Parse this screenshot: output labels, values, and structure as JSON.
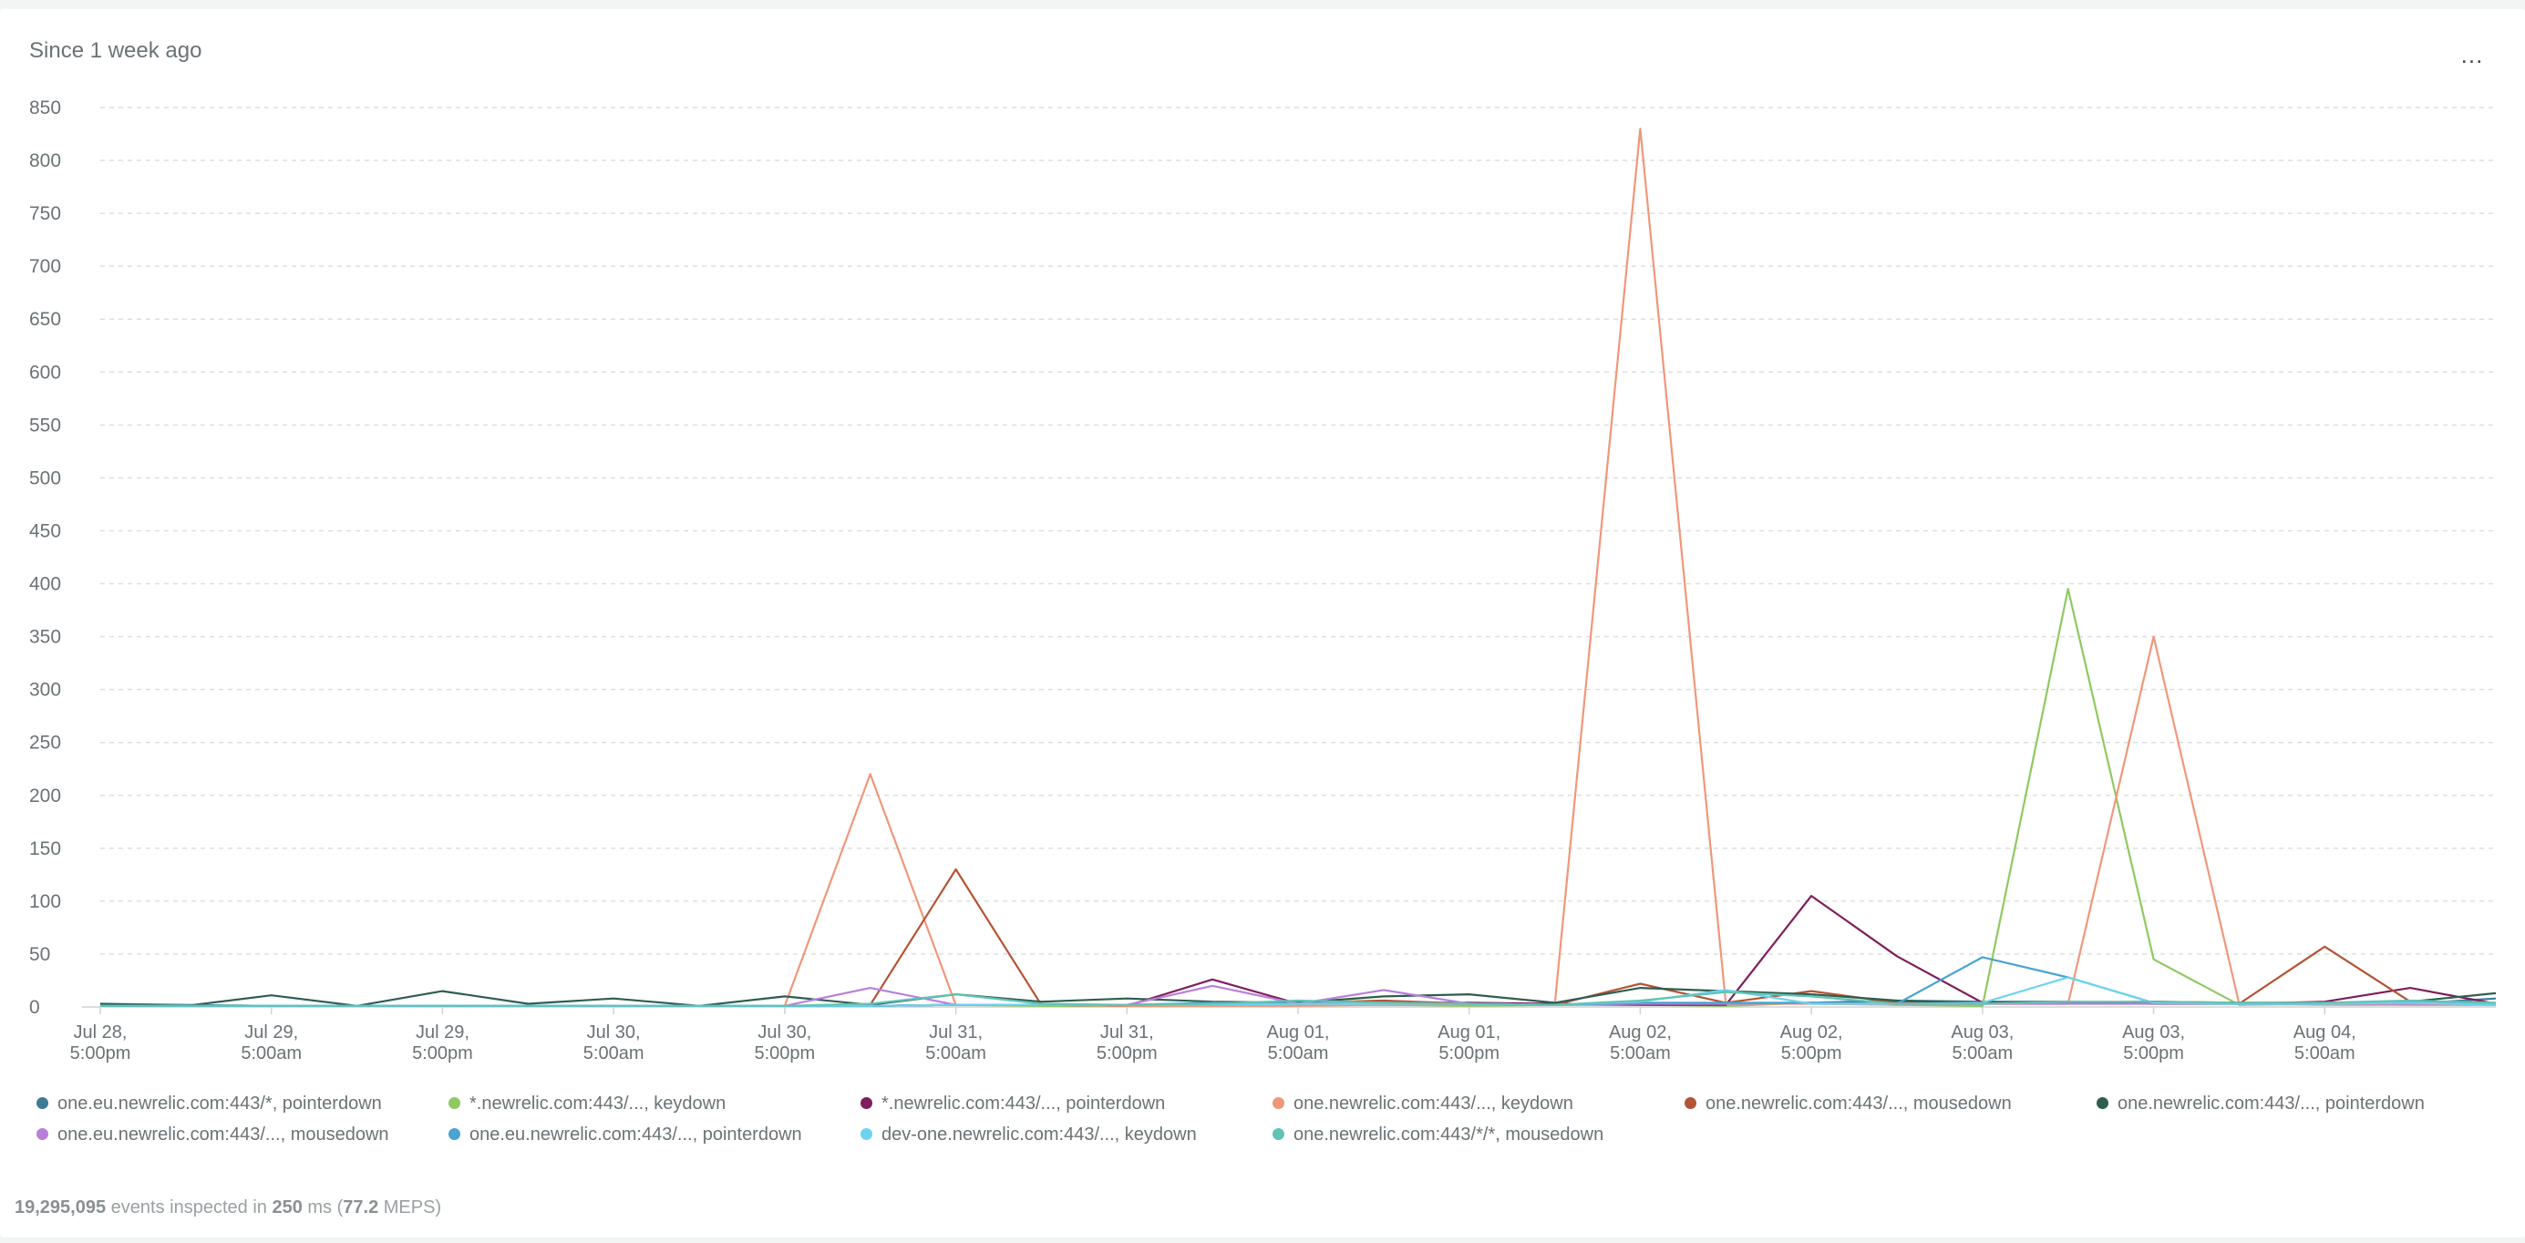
{
  "widget": {
    "title": "Since 1 week ago",
    "menu_label": "...",
    "footer": {
      "events": "19,295,095",
      "events_text": " events inspected in ",
      "ms": "250",
      "ms_text": " ms (",
      "meps": "77.2",
      "meps_text": " MEPS)"
    }
  },
  "chart_data": {
    "type": "line",
    "title": "",
    "xlabel": "",
    "ylabel": "",
    "ylim": [
      0,
      850
    ],
    "yticks": [
      0,
      50,
      100,
      150,
      200,
      250,
      300,
      350,
      400,
      450,
      500,
      550,
      600,
      650,
      700,
      750,
      800,
      850
    ],
    "grid": true,
    "legend_position": "bottom",
    "x": [
      0,
      2,
      4,
      6,
      8,
      10,
      12,
      14,
      16,
      18,
      20,
      22,
      24,
      26,
      28,
      30,
      32,
      34,
      36,
      38,
      40,
      42,
      44,
      46,
      48,
      50,
      52,
      54,
      56
    ],
    "x_unit": "hours since Jul 28, 5:00pm",
    "x_tick_labels": [
      [
        "Jul 28,",
        "5:00pm"
      ],
      [
        "Jul 29,",
        "5:00am"
      ],
      [
        "Jul 29,",
        "5:00pm"
      ],
      [
        "Jul 30,",
        "5:00am"
      ],
      [
        "Jul 30,",
        "5:00pm"
      ],
      [
        "Jul 31,",
        "5:00am"
      ],
      [
        "Jul 31,",
        "5:00pm"
      ],
      [
        "Aug 01,",
        "5:00am"
      ],
      [
        "Aug 01,",
        "5:00pm"
      ],
      [
        "Aug 02,",
        "5:00am"
      ],
      [
        "Aug 02,",
        "5:00pm"
      ],
      [
        "Aug 03,",
        "5:00am"
      ],
      [
        "Aug 03,",
        "5:00pm"
      ],
      [
        "Aug 04,",
        "5:00am"
      ]
    ],
    "x_tick_positions": [
      0,
      4,
      8,
      12,
      16,
      20,
      24,
      28,
      32,
      36,
      40,
      44,
      48,
      52
    ],
    "series": [
      {
        "name": "one.eu.newrelic.com:443/*, pointerdown",
        "color": "#3e7a94",
        "values": [
          3,
          2,
          1,
          1,
          1,
          1,
          1,
          1,
          1,
          1,
          2,
          2,
          2,
          3,
          3,
          2,
          3,
          2,
          3,
          3,
          4,
          6,
          5,
          5,
          3,
          3,
          3,
          3,
          8
        ]
      },
      {
        "name": "*.newrelic.com:443/..., keydown",
        "color": "#8fc961",
        "values": [
          1,
          1,
          1,
          1,
          1,
          1,
          1,
          1,
          1,
          1,
          2,
          1,
          1,
          1,
          2,
          2,
          1,
          2,
          2,
          1,
          4,
          2,
          1,
          395,
          45,
          2,
          3,
          2,
          2
        ]
      },
      {
        "name": "*.newrelic.com:443/..., pointerdown",
        "color": "#7e1e5c",
        "values": [
          1,
          1,
          1,
          1,
          1,
          1,
          1,
          1,
          1,
          1,
          2,
          2,
          1,
          26,
          3,
          4,
          4,
          3,
          2,
          2,
          105,
          48,
          4,
          4,
          5,
          3,
          5,
          18,
          3
        ]
      },
      {
        "name": "one.newrelic.com:443/..., keydown",
        "color": "#f0977a",
        "values": [
          1,
          1,
          1,
          1,
          1,
          1,
          1,
          1,
          1,
          220,
          2,
          2,
          1,
          1,
          1,
          2,
          2,
          2,
          830,
          3,
          3,
          2,
          3,
          3,
          350,
          3,
          2,
          2,
          2
        ]
      },
      {
        "name": "one.newrelic.com:443/..., mousedown",
        "color": "#b45436",
        "values": [
          1,
          1,
          1,
          1,
          1,
          1,
          1,
          1,
          1,
          2,
          130,
          2,
          2,
          3,
          4,
          6,
          3,
          2,
          22,
          4,
          15,
          4,
          4,
          4,
          3,
          3,
          57,
          5,
          2
        ]
      },
      {
        "name": "one.newrelic.com:443/..., pointerdown",
        "color": "#2e5e50",
        "values": [
          3,
          1,
          11,
          1,
          15,
          3,
          8,
          1,
          10,
          2,
          12,
          5,
          8,
          5,
          4,
          10,
          12,
          4,
          18,
          15,
          12,
          6,
          4,
          4,
          5,
          4,
          4,
          5,
          13
        ]
      },
      {
        "name": "one.eu.newrelic.com:443/..., mousedown",
        "color": "#b97fdc",
        "values": [
          1,
          1,
          1,
          1,
          1,
          1,
          1,
          1,
          1,
          18,
          2,
          2,
          2,
          20,
          3,
          16,
          3,
          2,
          3,
          3,
          4,
          3,
          3,
          3,
          3,
          3,
          3,
          3,
          3
        ]
      },
      {
        "name": "one.eu.newrelic.com:443/..., pointerdown",
        "color": "#4aa3d0",
        "values": [
          1,
          1,
          1,
          1,
          1,
          1,
          1,
          1,
          1,
          1,
          2,
          2,
          2,
          4,
          3,
          4,
          3,
          2,
          4,
          4,
          4,
          3,
          47,
          28,
          4,
          3,
          3,
          4,
          3
        ]
      },
      {
        "name": "dev-one.newrelic.com:443/..., keydown",
        "color": "#6dd2ef",
        "values": [
          1,
          1,
          1,
          1,
          1,
          1,
          1,
          1,
          1,
          1,
          2,
          2,
          2,
          2,
          3,
          3,
          3,
          2,
          5,
          16,
          3,
          3,
          4,
          28,
          4,
          3,
          3,
          4,
          2
        ]
      },
      {
        "name": "one.newrelic.com:443/*/*, mousedown",
        "color": "#61c3b4",
        "values": [
          1,
          1,
          1,
          1,
          1,
          1,
          1,
          1,
          1,
          3,
          12,
          3,
          2,
          3,
          6,
          4,
          3,
          2,
          6,
          14,
          10,
          3,
          3,
          5,
          5,
          4,
          4,
          6,
          4
        ]
      }
    ]
  }
}
